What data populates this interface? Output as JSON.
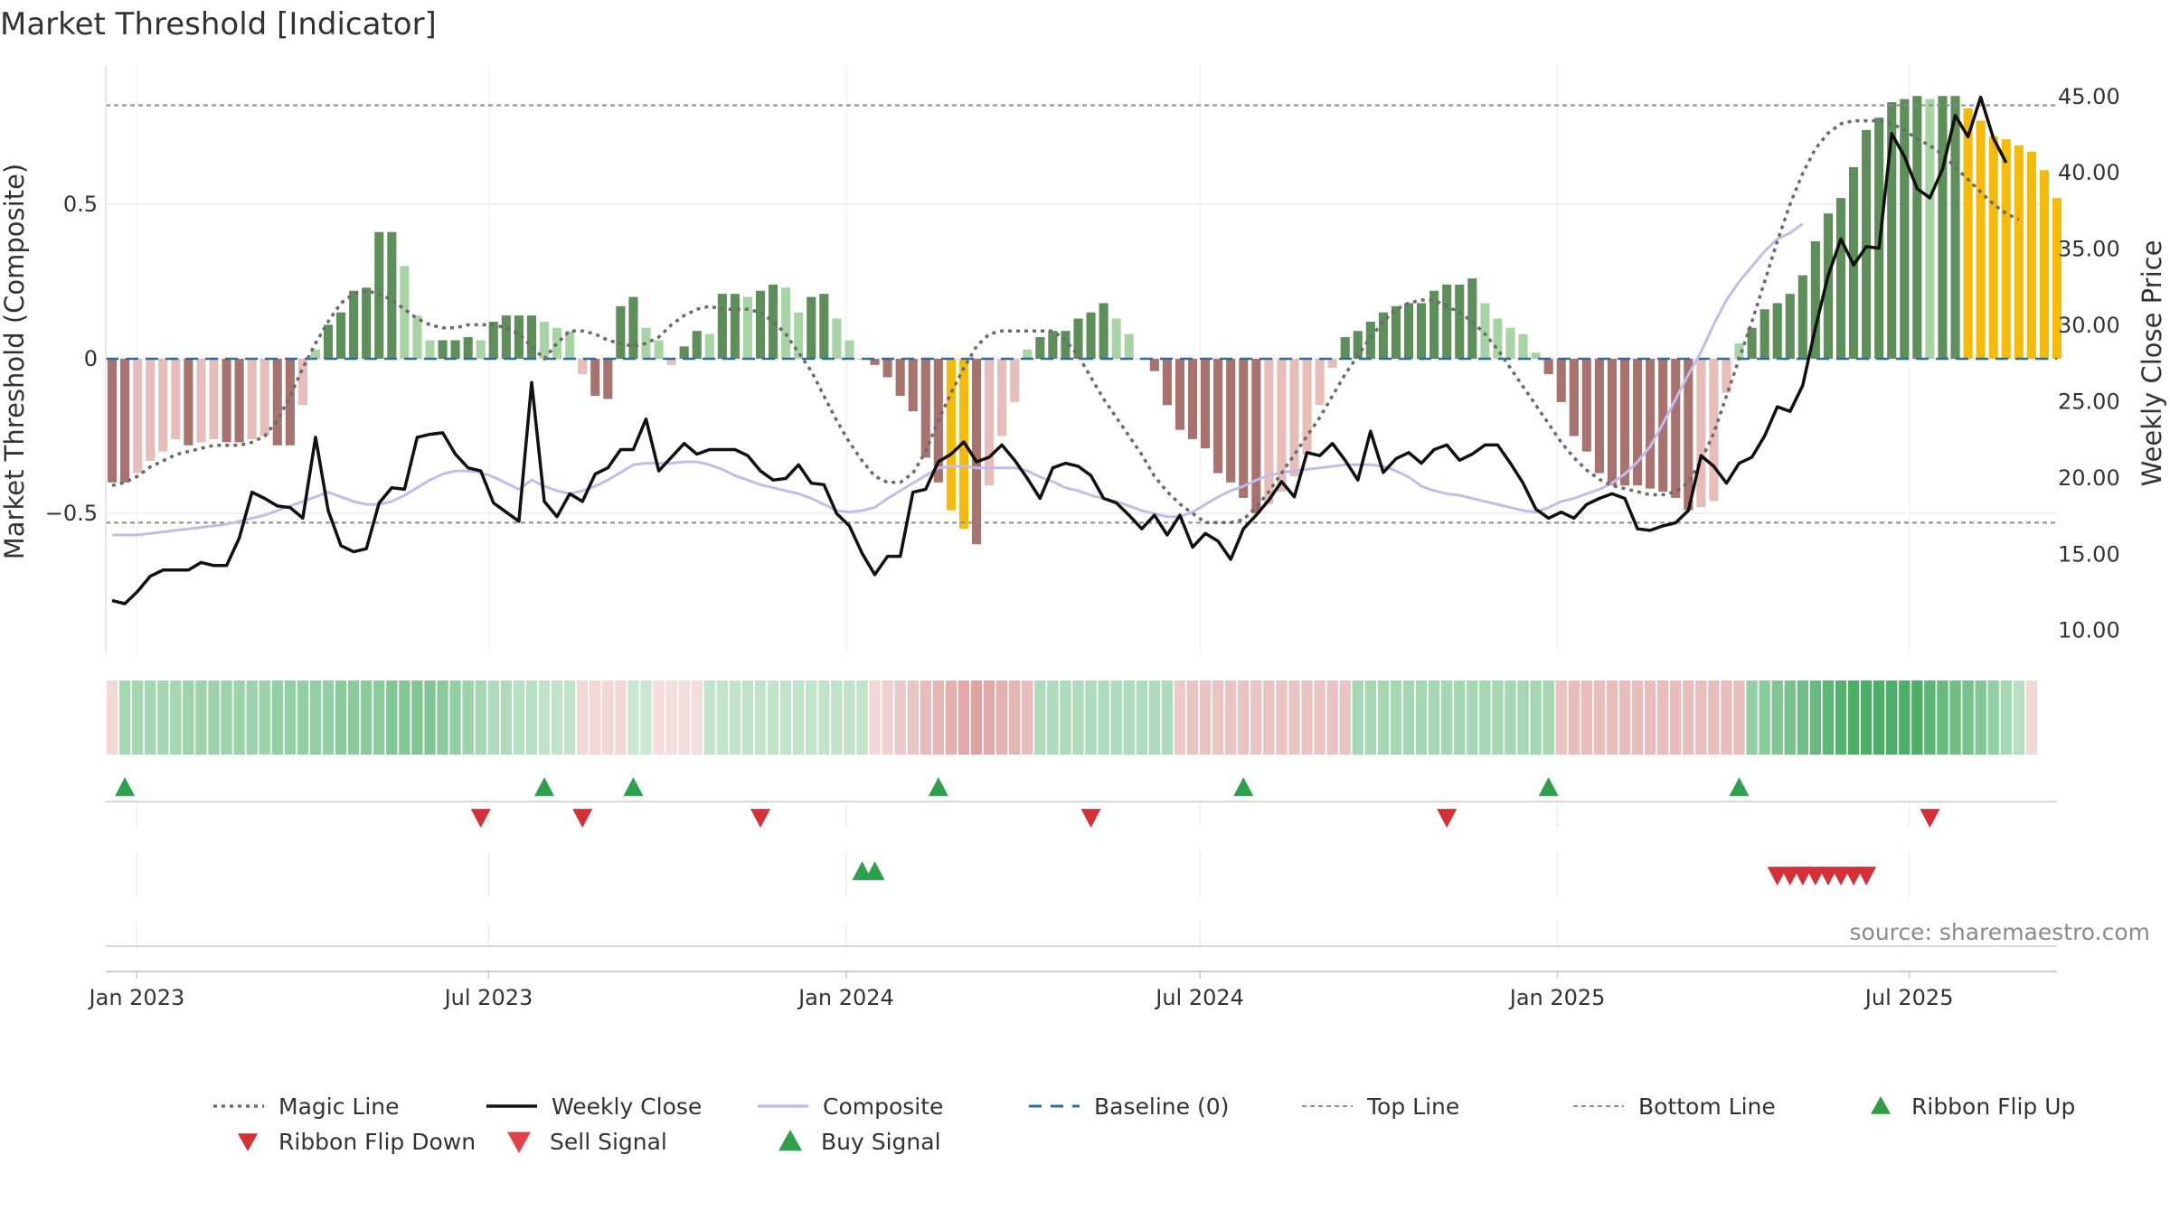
{
  "chart_data": {
    "type": "bar",
    "title": "Market Threshold [Indicator]",
    "ylabel_left": "Market Threshold (Composite)",
    "ylabel_right": "Weekly Close Price",
    "left_axis": {
      "ylim": [
        -0.95,
        0.95
      ],
      "ticks": [
        0.5,
        0,
        -0.5
      ],
      "tick_labels": [
        "0.5",
        "0",
        "−0.5"
      ]
    },
    "right_axis": {
      "ylim": [
        8.5,
        47.0
      ],
      "ticks": [
        45,
        40,
        35,
        30,
        25,
        20,
        15,
        10
      ],
      "tick_labels": [
        "45.00",
        "40.00",
        "35.00",
        "30.00",
        "25.00",
        "20.00",
        "15.00",
        "10.00"
      ]
    },
    "x_axis": {
      "start_date": "2022-12-16",
      "end_date": "2025-09-15",
      "ticks": [
        {
          "date": "2023-01-01",
          "label": "Jan 2023"
        },
        {
          "date": "2023-07-01",
          "label": "Jul 2023"
        },
        {
          "date": "2024-01-01",
          "label": "Jan 2024"
        },
        {
          "date": "2024-07-01",
          "label": "Jul 2024"
        },
        {
          "date": "2025-01-01",
          "label": "Jan 2025"
        },
        {
          "date": "2025-07-01",
          "label": "Jul 2025"
        }
      ]
    },
    "top_line": 0.82,
    "bottom_line": -0.53,
    "colors": {
      "bar_pos_strong": "#5e8f5b",
      "bar_pos_light": "#a8d4a5",
      "bar_neg_strong": "#a8736e",
      "bar_neg_light": "#e6bdb8",
      "bar_extreme": "#f5bb0b",
      "close": "#111111",
      "composite": "#c4bce8",
      "magic": "#6b6b6b",
      "baseline": "#2b6d9e",
      "buy": "#2ca04c",
      "sell": "#d62f36"
    },
    "composite_bars": [
      -0.4,
      -0.4,
      -0.37,
      -0.33,
      -0.3,
      -0.26,
      -0.28,
      -0.27,
      -0.26,
      -0.27,
      -0.27,
      -0.26,
      -0.25,
      -0.28,
      -0.28,
      -0.15,
      0.03,
      0.11,
      0.15,
      0.22,
      0.23,
      0.41,
      0.41,
      0.3,
      0.14,
      0.06,
      0.06,
      0.06,
      0.07,
      0.06,
      0.12,
      0.14,
      0.14,
      0.14,
      0.12,
      0.1,
      0.09,
      -0.05,
      -0.12,
      -0.13,
      0.17,
      0.2,
      0.1,
      0.06,
      -0.02,
      0.04,
      0.09,
      0.08,
      0.21,
      0.21,
      0.2,
      0.22,
      0.24,
      0.23,
      0.15,
      0.2,
      0.21,
      0.13,
      0.06,
      0.0,
      -0.02,
      -0.06,
      -0.12,
      -0.17,
      -0.32,
      -0.4,
      -0.49,
      -0.55,
      -0.6,
      -0.41,
      -0.25,
      -0.14,
      0.03,
      0.07,
      0.09,
      0.09,
      0.13,
      0.15,
      0.18,
      0.13,
      0.08,
      0.0,
      -0.04,
      -0.15,
      -0.23,
      -0.26,
      -0.29,
      -0.37,
      -0.4,
      -0.45,
      -0.5,
      -0.47,
      -0.43,
      -0.38,
      -0.31,
      -0.15,
      -0.03,
      0.07,
      0.09,
      0.12,
      0.15,
      0.17,
      0.18,
      0.18,
      0.22,
      0.24,
      0.24,
      0.26,
      0.18,
      0.13,
      0.1,
      0.08,
      0.02,
      -0.05,
      -0.14,
      -0.25,
      -0.3,
      -0.37,
      -0.41,
      -0.41,
      -0.41,
      -0.42,
      -0.43,
      -0.45,
      -0.49,
      -0.48,
      -0.46,
      -0.11,
      0.05,
      0.1,
      0.16,
      0.18,
      0.21,
      0.27,
      0.38,
      0.47,
      0.52,
      0.62,
      0.74,
      0.78,
      0.83,
      0.84,
      0.85,
      0.84,
      0.85,
      0.85,
      0.81,
      0.77,
      0.72,
      0.71,
      0.69,
      0.67,
      0.61,
      0.52
    ],
    "extreme_bars": [
      66,
      67,
      146,
      147,
      148,
      149,
      150,
      151,
      152,
      153
    ],
    "weekly_close": [
      11.9,
      11.7,
      12.5,
      13.5,
      13.9,
      13.9,
      13.9,
      14.4,
      14.2,
      14.2,
      16.0,
      19.0,
      18.6,
      18.1,
      18.0,
      17.3,
      22.6,
      17.8,
      15.5,
      15.1,
      15.3,
      18.3,
      19.3,
      19.2,
      22.6,
      22.8,
      22.9,
      21.5,
      20.6,
      20.4,
      18.3,
      17.7,
      17.1,
      26.2,
      18.4,
      17.4,
      18.9,
      18.4,
      20.2,
      20.6,
      21.8,
      21.8,
      23.8,
      20.4,
      21.3,
      22.2,
      21.5,
      21.8,
      21.8,
      21.8,
      21.4,
      20.4,
      19.8,
      19.9,
      20.8,
      19.6,
      19.5,
      17.6,
      16.8,
      15.0,
      13.6,
      14.8,
      14.8,
      19.0,
      19.2,
      21.0,
      21.5,
      22.3,
      21.0,
      21.3,
      22.1,
      21.1,
      19.9,
      18.6,
      20.6,
      20.9,
      20.7,
      20.1,
      18.6,
      18.3,
      17.5,
      16.6,
      17.5,
      16.2,
      17.5,
      15.4,
      16.3,
      15.8,
      14.6,
      16.6,
      17.5,
      18.5,
      19.7,
      18.7,
      21.6,
      21.4,
      22.2,
      21.1,
      19.8,
      23.0,
      20.3,
      21.2,
      21.6,
      20.9,
      21.8,
      22.1,
      21.1,
      21.5,
      22.1,
      22.1,
      20.9,
      19.6,
      17.9,
      17.3,
      17.7,
      17.3,
      18.2,
      18.6,
      18.9,
      18.6,
      16.6,
      16.5,
      16.8,
      17.0,
      17.8,
      21.4,
      20.7,
      19.6,
      20.9,
      21.3,
      22.7,
      24.6,
      24.3,
      26.0,
      29.8,
      33.2,
      35.6,
      33.9,
      35.1,
      35.0,
      42.5,
      41.0,
      38.9,
      38.3,
      40.2,
      43.7,
      42.3,
      44.9,
      42.2,
      40.6
    ],
    "composite_line": [
      16.2,
      16.2,
      16.2,
      16.3,
      16.4,
      16.5,
      16.6,
      16.7,
      16.8,
      16.9,
      17.1,
      17.3,
      17.5,
      17.8,
      18.1,
      18.4,
      18.7,
      19.0,
      18.7,
      18.4,
      18.2,
      18.2,
      18.4,
      18.8,
      19.3,
      19.8,
      20.2,
      20.4,
      20.4,
      20.3,
      20.0,
      19.6,
      19.2,
      19.8,
      19.4,
      19.1,
      18.9,
      19.1,
      19.4,
      19.8,
      20.3,
      20.8,
      20.9,
      20.9,
      20.9,
      21.0,
      21.0,
      20.8,
      20.5,
      20.1,
      19.8,
      19.5,
      19.3,
      19.1,
      18.9,
      18.6,
      18.2,
      17.8,
      17.7,
      17.8,
      18.0,
      18.6,
      19.1,
      19.6,
      20.1,
      20.6,
      20.7,
      20.7,
      20.6,
      20.6,
      20.6,
      20.6,
      20.4,
      20.0,
      19.7,
      19.3,
      19.1,
      18.8,
      18.6,
      18.4,
      18.1,
      17.8,
      17.6,
      17.4,
      17.4,
      17.7,
      18.2,
      18.7,
      19.1,
      19.4,
      19.8,
      20.1,
      20.3,
      20.4,
      20.5,
      20.6,
      20.7,
      20.8,
      20.8,
      20.8,
      20.7,
      20.4,
      20.0,
      19.4,
      19.1,
      18.9,
      18.8,
      18.6,
      18.4,
      18.2,
      18.0,
      17.8,
      17.7,
      18.0,
      18.4,
      18.6,
      18.9,
      19.2,
      19.6,
      20.2,
      21.0,
      22.0,
      23.5,
      25.1,
      26.7,
      28.2,
      30.0,
      31.6,
      32.8,
      33.8,
      34.8,
      35.6,
      36.0,
      36.6
    ],
    "magic_line": [
      -0.41,
      -0.4,
      -0.38,
      -0.35,
      -0.33,
      -0.31,
      -0.3,
      -0.29,
      -0.28,
      -0.28,
      -0.28,
      -0.27,
      -0.25,
      -0.2,
      -0.12,
      -0.03,
      0.05,
      0.12,
      0.18,
      0.21,
      0.22,
      0.21,
      0.19,
      0.16,
      0.13,
      0.11,
      0.1,
      0.1,
      0.11,
      0.11,
      0.11,
      0.1,
      0.08,
      0.04,
      0.0,
      0.05,
      0.09,
      0.09,
      0.08,
      0.06,
      0.05,
      0.04,
      0.05,
      0.07,
      0.11,
      0.14,
      0.16,
      0.17,
      0.16,
      0.16,
      0.16,
      0.15,
      0.12,
      0.08,
      0.02,
      -0.04,
      -0.12,
      -0.2,
      -0.27,
      -0.33,
      -0.38,
      -0.4,
      -0.4,
      -0.37,
      -0.3,
      -0.2,
      -0.11,
      -0.03,
      0.04,
      0.08,
      0.09,
      0.09,
      0.09,
      0.09,
      0.09,
      0.06,
      0.01,
      -0.06,
      -0.13,
      -0.19,
      -0.25,
      -0.31,
      -0.38,
      -0.43,
      -0.47,
      -0.5,
      -0.53,
      -0.53,
      -0.53,
      -0.52,
      -0.48,
      -0.43,
      -0.37,
      -0.31,
      -0.25,
      -0.19,
      -0.12,
      -0.05,
      0.01,
      0.07,
      0.12,
      0.16,
      0.18,
      0.19,
      0.19,
      0.17,
      0.15,
      0.12,
      0.08,
      0.03,
      -0.03,
      -0.09,
      -0.15,
      -0.21,
      -0.27,
      -0.32,
      -0.36,
      -0.39,
      -0.41,
      -0.42,
      -0.43,
      -0.44,
      -0.44,
      -0.43,
      -0.4,
      -0.33,
      -0.24,
      -0.12,
      0.0,
      0.12,
      0.25,
      0.38,
      0.5,
      0.6,
      0.68,
      0.73,
      0.76,
      0.77,
      0.77,
      0.77,
      0.76,
      0.74,
      0.71,
      0.69,
      0.66,
      0.62,
      0.58,
      0.54,
      0.5,
      0.47,
      0.45
    ],
    "ribbon_levels": [
      -0.3,
      0.5,
      0.5,
      0.5,
      0.5,
      0.5,
      0.55,
      0.55,
      0.55,
      0.55,
      0.55,
      0.55,
      0.55,
      0.6,
      0.6,
      0.6,
      0.6,
      0.6,
      0.65,
      0.65,
      0.65,
      0.65,
      0.7,
      0.7,
      0.7,
      0.7,
      0.65,
      0.6,
      0.55,
      0.5,
      0.45,
      0.45,
      0.4,
      0.4,
      0.35,
      0.35,
      0.35,
      -0.3,
      -0.3,
      -0.3,
      -0.3,
      0.3,
      0.3,
      -0.25,
      -0.25,
      -0.25,
      -0.25,
      0.35,
      0.35,
      0.35,
      0.35,
      0.35,
      0.35,
      0.35,
      0.35,
      0.35,
      0.35,
      0.35,
      0.35,
      0.35,
      -0.3,
      -0.35,
      -0.4,
      -0.45,
      -0.5,
      -0.55,
      -0.6,
      -0.65,
      -0.7,
      -0.65,
      -0.6,
      -0.55,
      -0.5,
      0.45,
      0.45,
      0.45,
      0.45,
      0.45,
      0.45,
      0.45,
      0.45,
      0.45,
      0.45,
      0.45,
      -0.4,
      -0.45,
      -0.45,
      -0.45,
      -0.45,
      -0.45,
      -0.45,
      -0.45,
      -0.45,
      -0.45,
      -0.45,
      -0.45,
      -0.45,
      -0.45,
      0.5,
      0.5,
      0.5,
      0.5,
      0.5,
      0.5,
      0.5,
      0.5,
      0.5,
      0.5,
      0.5,
      0.5,
      0.5,
      0.5,
      0.5,
      0.5,
      -0.45,
      -0.5,
      -0.5,
      -0.5,
      -0.5,
      -0.5,
      -0.5,
      -0.5,
      -0.5,
      -0.5,
      -0.5,
      -0.5,
      -0.5,
      -0.5,
      -0.5,
      0.6,
      0.65,
      0.7,
      0.75,
      0.8,
      0.85,
      0.9,
      0.95,
      1.0,
      1.0,
      1.0,
      1.0,
      1.0,
      1.0,
      0.9,
      0.85,
      0.8,
      0.75,
      0.7,
      0.6,
      0.5,
      0.4,
      -0.3
    ],
    "ribbon_flip_up": [
      1,
      34,
      41,
      65,
      89,
      113,
      128
    ],
    "ribbon_flip_down": [
      29,
      37,
      51,
      77,
      105,
      143
    ],
    "buy_signal": [
      59,
      60
    ],
    "sell_signal": [
      131,
      132,
      133,
      134,
      135,
      136,
      137,
      138
    ]
  },
  "legend": [
    {
      "label": "Magic Line",
      "icon": "dotted-line"
    },
    {
      "label": "Weekly Close",
      "icon": "solid-line"
    },
    {
      "label": "Composite",
      "icon": "solid-line-light"
    },
    {
      "label": "Baseline (0)",
      "icon": "dashed-line"
    },
    {
      "label": "Top Line",
      "icon": "dotted-line-light"
    },
    {
      "label": "Bottom Line",
      "icon": "dotted-line-light"
    },
    {
      "label": "Ribbon Flip Up",
      "icon": "triangle-up"
    },
    {
      "label": "Ribbon Flip Down",
      "icon": "triangle-down"
    },
    {
      "label": "Sell Signal",
      "icon": "triangle-down"
    },
    {
      "label": "Buy Signal",
      "icon": "triangle-up"
    }
  ],
  "source_note": "source: sharemaestro.com"
}
